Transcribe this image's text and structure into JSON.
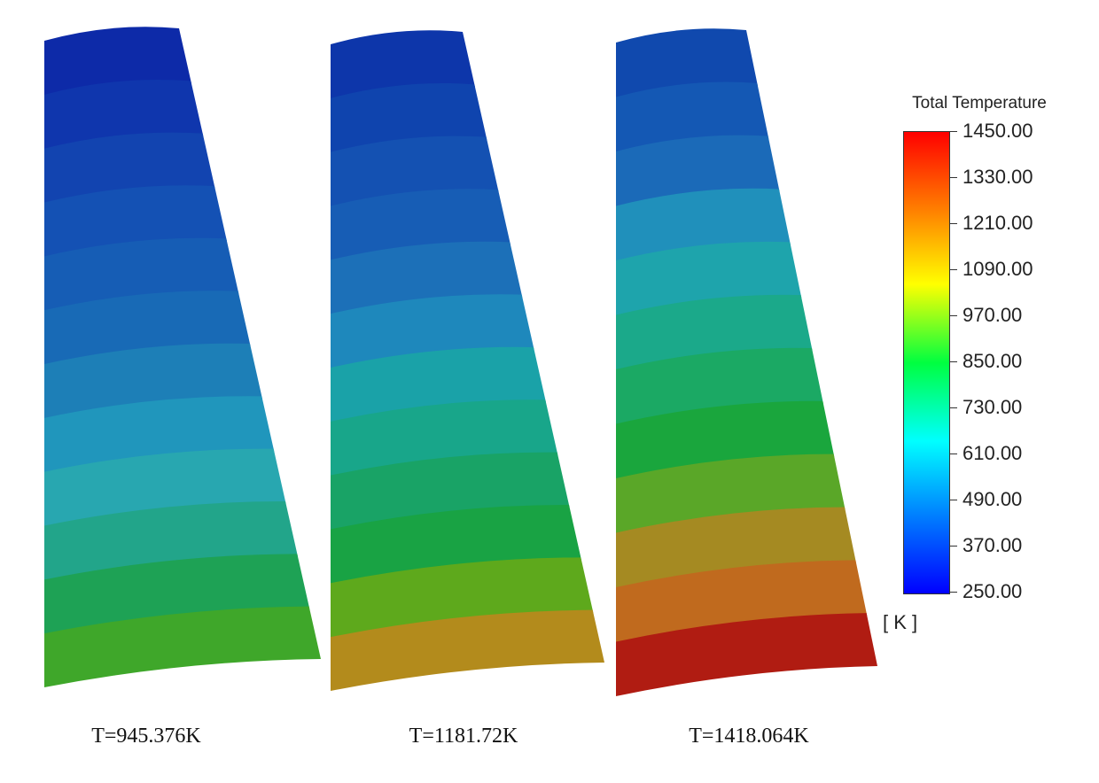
{
  "legend": {
    "title": "Total Temperature",
    "unit": "[ K ]",
    "ticks": [
      "1450.00",
      "1330.00",
      "1210.00",
      "1090.00",
      "970.00",
      "850.00",
      "730.00",
      "610.00",
      "490.00",
      "370.00",
      "250.00"
    ]
  },
  "cases": [
    {
      "label": "T=945.376K",
      "band_colors": [
        "#0d2aa8",
        "#0f36ad",
        "#1244b0",
        "#1451b4",
        "#165db5",
        "#186ab6",
        "#1d7fb7",
        "#2096bc",
        "#28a7b0",
        "#22a58a",
        "#1ea255",
        "#3fa72a"
      ]
    },
    {
      "label": "T=1181.72K",
      "band_colors": [
        "#0d36aa",
        "#0f44ae",
        "#1451b2",
        "#175db5",
        "#1c70b8",
        "#1e88bc",
        "#1aa2a8",
        "#18a68a",
        "#19a366",
        "#19a344",
        "#5ea91c",
        "#b38b1c"
      ]
    },
    {
      "label": "T=1418.064K",
      "band_colors": [
        "#1049ae",
        "#1458b4",
        "#1b6ab8",
        "#2090bb",
        "#1ea4ac",
        "#1ba98a",
        "#1ba964",
        "#1aa63d",
        "#5aa728",
        "#a58a22",
        "#c06a1e",
        "#b01c12"
      ]
    }
  ]
}
